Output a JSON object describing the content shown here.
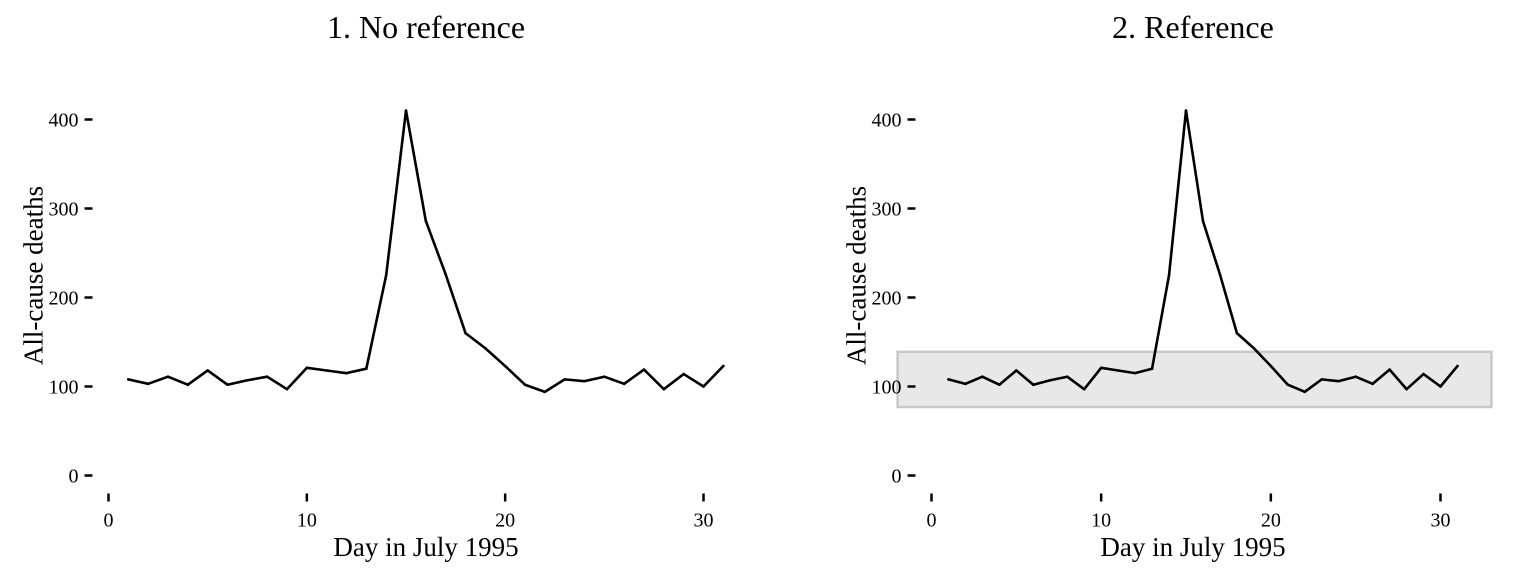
{
  "chart_data": [
    {
      "type": "line",
      "title": "1. No reference",
      "xlabel": "Day in July 1995",
      "ylabel": "All-cause deaths",
      "xlim": [
        0,
        31
      ],
      "ylim": [
        0,
        415
      ],
      "x_ticks": [
        0,
        10,
        20,
        30
      ],
      "y_ticks": [
        0,
        100,
        200,
        300,
        400
      ],
      "grid": false,
      "series": [
        {
          "x": [
            1,
            2,
            3,
            4,
            5,
            6,
            7,
            8,
            9,
            10,
            11,
            12,
            13,
            14,
            15,
            16,
            17,
            18,
            19,
            20,
            21,
            22,
            23,
            24,
            25,
            26,
            27,
            28,
            29,
            30,
            31
          ],
          "values": [
            108,
            103,
            111,
            102,
            118,
            102,
            107,
            111,
            97,
            121,
            118,
            115,
            120,
            225,
            410,
            286,
            226,
            160,
            143,
            123,
            102,
            94,
            108,
            106,
            111,
            103,
            119,
            97,
            114,
            100,
            123
          ]
        }
      ]
    },
    {
      "type": "line",
      "title": "2. Reference",
      "xlabel": "Day in July 1995",
      "ylabel": "All-cause deaths",
      "xlim": [
        -2,
        33
      ],
      "ylim": [
        0,
        415
      ],
      "x_ticks": [
        0,
        10,
        20,
        30
      ],
      "y_ticks": [
        0,
        100,
        200,
        300,
        400
      ],
      "grid": false,
      "reference_band": {
        "x": [
          -2,
          33
        ],
        "y": [
          77,
          139
        ],
        "fill": "#e8e8e8",
        "stroke": "#c8c8c8"
      },
      "series": [
        {
          "x": [
            1,
            2,
            3,
            4,
            5,
            6,
            7,
            8,
            9,
            10,
            11,
            12,
            13,
            14,
            15,
            16,
            17,
            18,
            19,
            20,
            21,
            22,
            23,
            24,
            25,
            26,
            27,
            28,
            29,
            30,
            31
          ],
          "values": [
            108,
            103,
            111,
            102,
            118,
            102,
            107,
            111,
            97,
            121,
            118,
            115,
            120,
            225,
            410,
            286,
            226,
            160,
            143,
            123,
            102,
            94,
            108,
            106,
            111,
            103,
            119,
            97,
            114,
            100,
            123
          ]
        }
      ]
    }
  ],
  "colors": {
    "line": "#000000",
    "band_fill": "#e8e8e8",
    "band_stroke": "#c8c8c8",
    "background": "#ffffff"
  }
}
